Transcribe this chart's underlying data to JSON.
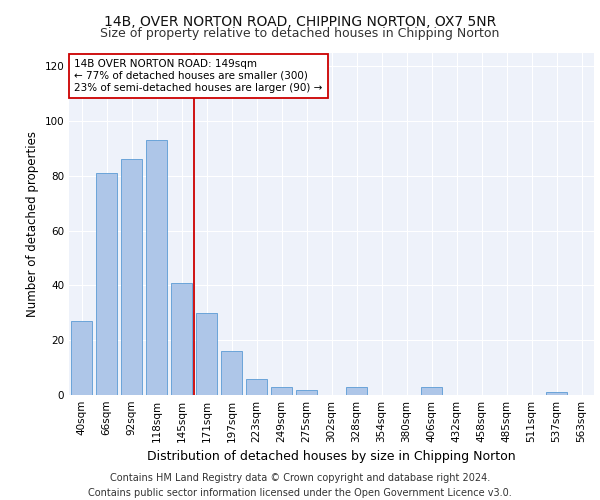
{
  "title1": "14B, OVER NORTON ROAD, CHIPPING NORTON, OX7 5NR",
  "title2": "Size of property relative to detached houses in Chipping Norton",
  "xlabel": "Distribution of detached houses by size in Chipping Norton",
  "ylabel": "Number of detached properties",
  "categories": [
    "40sqm",
    "66sqm",
    "92sqm",
    "118sqm",
    "145sqm",
    "171sqm",
    "197sqm",
    "223sqm",
    "249sqm",
    "275sqm",
    "302sqm",
    "328sqm",
    "354sqm",
    "380sqm",
    "406sqm",
    "432sqm",
    "458sqm",
    "485sqm",
    "511sqm",
    "537sqm",
    "563sqm"
  ],
  "values": [
    27,
    81,
    86,
    93,
    41,
    30,
    16,
    6,
    3,
    2,
    0,
    3,
    0,
    0,
    3,
    0,
    0,
    0,
    0,
    1,
    0
  ],
  "bar_color": "#aec6e8",
  "bar_edge_color": "#5b9bd5",
  "vline_x": 4.5,
  "vline_color": "#cc0000",
  "annotation_text": "14B OVER NORTON ROAD: 149sqm\n← 77% of detached houses are smaller (300)\n23% of semi-detached houses are larger (90) →",
  "annotation_box_color": "#ffffff",
  "annotation_box_edge": "#cc0000",
  "ylim": [
    0,
    125
  ],
  "yticks": [
    0,
    20,
    40,
    60,
    80,
    100,
    120
  ],
  "footer": "Contains HM Land Registry data © Crown copyright and database right 2024.\nContains public sector information licensed under the Open Government Licence v3.0.",
  "background_color": "#eef2fa",
  "grid_color": "#ffffff",
  "title1_fontsize": 10,
  "title2_fontsize": 9,
  "xlabel_fontsize": 9,
  "ylabel_fontsize": 8.5,
  "tick_fontsize": 7.5,
  "footer_fontsize": 7
}
